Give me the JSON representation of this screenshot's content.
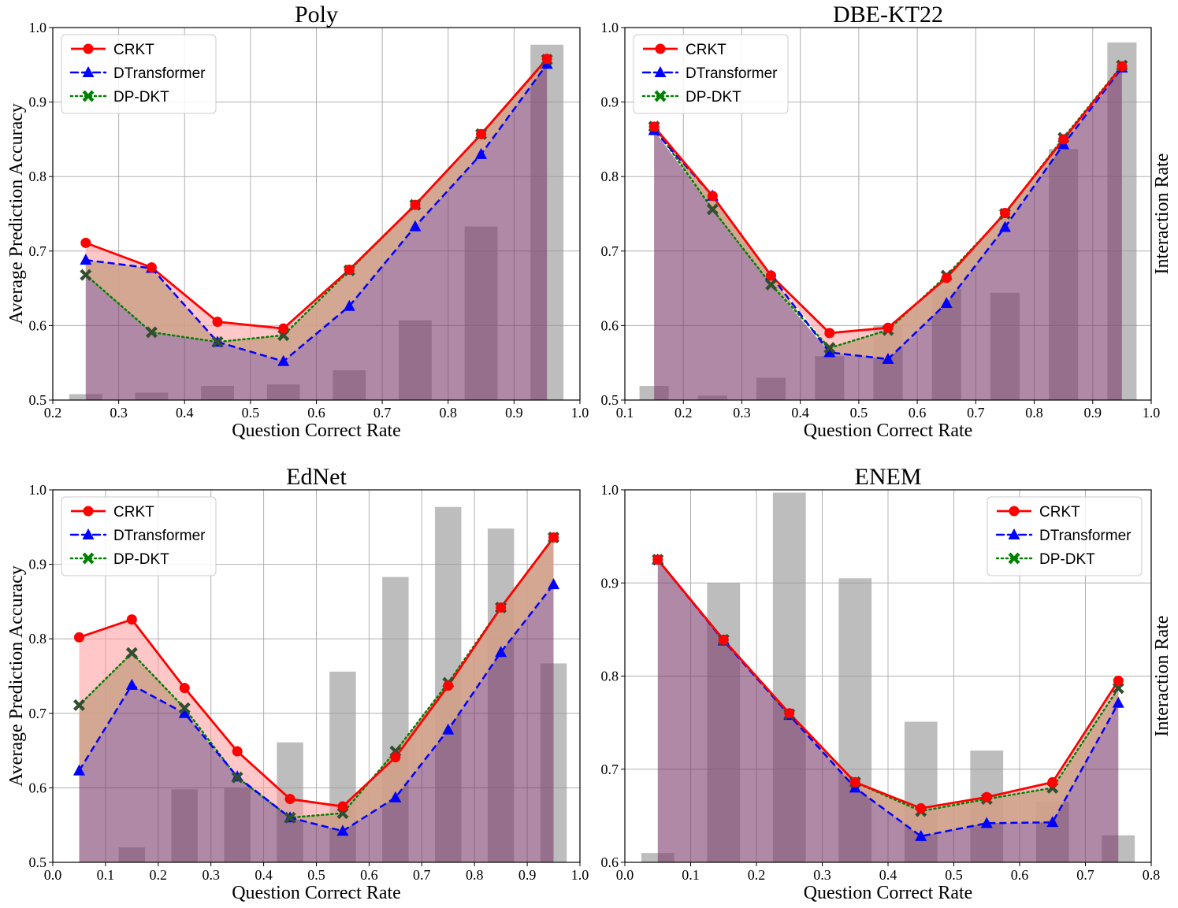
{
  "colors": {
    "crkt": "#ff0000",
    "dtransformer": "#0000ff",
    "dpdkt": "#008000",
    "dpdkt_marker_overlap": "#2f4f2f",
    "bar": "#999999",
    "area_fill": "#7b3b6b",
    "gap_crkt": "#ff9999",
    "gap_dt": "#cc88cc",
    "gap_dp": "#d2a679",
    "grid": "#b0b0b0"
  },
  "legend_labels": [
    "CRKT",
    "DTransformer",
    "DP-DKT"
  ],
  "chart_data": [
    {
      "type": "line",
      "title": "Poly",
      "xlabel": "Question Correct Rate",
      "ylabel": "Average Prediction Accuracy",
      "y2label": "",
      "legend_position": "top-left",
      "xlim": [
        0.2,
        1.0
      ],
      "ylim": [
        0.5,
        1.0
      ],
      "xticks": [
        "0.2",
        "0.3",
        "0.4",
        "0.5",
        "0.6",
        "0.7",
        "0.8",
        "0.9",
        "1.0"
      ],
      "yticks": [
        "0.5",
        "0.6",
        "0.7",
        "0.8",
        "0.9",
        "1.0"
      ],
      "x": [
        0.25,
        0.35,
        0.45,
        0.55,
        0.65,
        0.75,
        0.85,
        0.95
      ],
      "bar_x": [
        0.25,
        0.35,
        0.45,
        0.55,
        0.65,
        0.75,
        0.85,
        0.95
      ],
      "bar_values": [
        0.508,
        0.51,
        0.519,
        0.521,
        0.54,
        0.607,
        0.733,
        0.977
      ],
      "series": [
        {
          "name": "CRKT",
          "values": [
            0.711,
            0.678,
            0.605,
            0.596,
            0.675,
            0.762,
            0.857,
            0.958
          ]
        },
        {
          "name": "DTransformer",
          "values": [
            0.688,
            0.677,
            0.578,
            0.552,
            0.626,
            0.733,
            0.83,
            0.951
          ]
        },
        {
          "name": "DP-DKT",
          "values": [
            0.668,
            0.591,
            0.578,
            0.587,
            0.674,
            0.762,
            0.857,
            0.957
          ]
        }
      ]
    },
    {
      "type": "line",
      "title": "DBE-KT22",
      "xlabel": "Question Correct Rate",
      "ylabel": "",
      "y2label": "Interaction Rate",
      "legend_position": "top-left",
      "xlim": [
        0.1,
        1.0
      ],
      "ylim": [
        0.5,
        1.0
      ],
      "xticks": [
        "0.1",
        "0.2",
        "0.3",
        "0.4",
        "0.5",
        "0.6",
        "0.7",
        "0.8",
        "0.9",
        "1.0"
      ],
      "yticks": [
        "0.5",
        "0.6",
        "0.7",
        "0.8",
        "0.9",
        "1.0"
      ],
      "x": [
        0.15,
        0.25,
        0.35,
        0.45,
        0.55,
        0.65,
        0.75,
        0.85,
        0.95
      ],
      "bar_x": [
        0.15,
        0.25,
        0.35,
        0.45,
        0.55,
        0.65,
        0.75,
        0.85,
        0.95
      ],
      "bar_values": [
        0.519,
        0.506,
        0.53,
        0.559,
        0.6,
        0.649,
        0.644,
        0.837,
        0.98
      ],
      "series": [
        {
          "name": "CRKT",
          "values": [
            0.867,
            0.774,
            0.667,
            0.59,
            0.597,
            0.664,
            0.751,
            0.85,
            0.948
          ]
        },
        {
          "name": "DTransformer",
          "values": [
            0.862,
            0.774,
            0.667,
            0.564,
            0.555,
            0.63,
            0.732,
            0.843,
            0.946
          ]
        },
        {
          "name": "DP-DKT",
          "values": [
            0.867,
            0.756,
            0.655,
            0.57,
            0.594,
            0.667,
            0.75,
            0.852,
            0.949
          ]
        }
      ]
    },
    {
      "type": "line",
      "title": "EdNet",
      "xlabel": "Question Correct Rate",
      "ylabel": "Average Prediction Accuracy",
      "y2label": "",
      "legend_position": "top-left",
      "xlim": [
        0.0,
        1.0
      ],
      "ylim": [
        0.5,
        1.0
      ],
      "xticks": [
        "0.0",
        "0.1",
        "0.2",
        "0.3",
        "0.4",
        "0.5",
        "0.6",
        "0.7",
        "0.8",
        "0.9",
        "1.0"
      ],
      "yticks": [
        "0.5",
        "0.6",
        "0.7",
        "0.8",
        "0.9",
        "1.0"
      ],
      "x": [
        0.05,
        0.15,
        0.25,
        0.35,
        0.45,
        0.55,
        0.65,
        0.75,
        0.85,
        0.95
      ],
      "bar_x": [
        0.15,
        0.25,
        0.35,
        0.45,
        0.55,
        0.65,
        0.75,
        0.85,
        0.95
      ],
      "bar_values": [
        0.52,
        0.598,
        0.6,
        0.661,
        0.756,
        0.883,
        0.977,
        0.948,
        0.767
      ],
      "series": [
        {
          "name": "CRKT",
          "values": [
            0.802,
            0.826,
            0.734,
            0.649,
            0.585,
            0.575,
            0.641,
            0.737,
            0.842,
            0.936
          ]
        },
        {
          "name": "DTransformer",
          "values": [
            0.623,
            0.738,
            0.7,
            0.615,
            0.56,
            0.542,
            0.587,
            0.678,
            0.782,
            0.873
          ]
        },
        {
          "name": "DP-DKT",
          "values": [
            0.711,
            0.781,
            0.707,
            0.614,
            0.56,
            0.566,
            0.649,
            0.741,
            0.842,
            0.936
          ]
        }
      ]
    },
    {
      "type": "line",
      "title": "ENEM",
      "xlabel": "Question Correct Rate",
      "ylabel": "",
      "y2label": "Interaction Rate",
      "legend_position": "top-right",
      "xlim": [
        0.0,
        0.8
      ],
      "ylim": [
        0.6,
        1.0
      ],
      "xticks": [
        "0.0",
        "0.1",
        "0.2",
        "0.3",
        "0.4",
        "0.5",
        "0.6",
        "0.7",
        "0.8"
      ],
      "yticks": [
        "0.6",
        "0.7",
        "0.8",
        "0.9",
        "1.0"
      ],
      "x": [
        0.05,
        0.15,
        0.25,
        0.35,
        0.45,
        0.55,
        0.65,
        0.75
      ],
      "bar_x": [
        0.05,
        0.15,
        0.25,
        0.35,
        0.45,
        0.55,
        0.65,
        0.75
      ],
      "bar_values": [
        0.61,
        0.9,
        0.997,
        0.905,
        0.751,
        0.72,
        0.665,
        0.629
      ],
      "series": [
        {
          "name": "CRKT",
          "values": [
            0.925,
            0.839,
            0.76,
            0.686,
            0.658,
            0.67,
            0.686,
            0.795
          ]
        },
        {
          "name": "DTransformer",
          "values": [
            0.925,
            0.838,
            0.758,
            0.68,
            0.628,
            0.642,
            0.643,
            0.771
          ]
        },
        {
          "name": "DP-DKT",
          "values": [
            0.925,
            0.839,
            0.759,
            0.686,
            0.655,
            0.668,
            0.68,
            0.787
          ]
        }
      ]
    }
  ]
}
